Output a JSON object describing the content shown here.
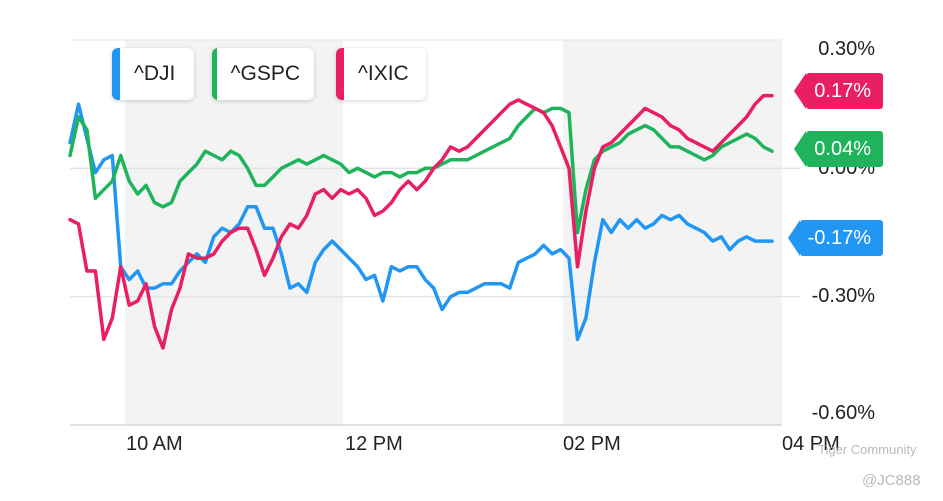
{
  "chart_data": {
    "type": "line",
    "x_ticks": [
      "10 AM",
      "12 PM",
      "02 PM",
      "04 PM"
    ],
    "y_ticks": [
      "0.30%",
      "0.00%",
      "-0.30%",
      "-0.60%"
    ],
    "ylim": [
      -0.6,
      0.3
    ],
    "series": [
      {
        "name": "^DJI",
        "color": "#2196f3",
        "last_label": "-0.17%",
        "values": [
          0.06,
          0.15,
          0.07,
          -0.01,
          0.02,
          0.03,
          -0.23,
          -0.26,
          -0.24,
          -0.28,
          -0.28,
          -0.27,
          -0.27,
          -0.24,
          -0.22,
          -0.2,
          -0.22,
          -0.16,
          -0.14,
          -0.15,
          -0.13,
          -0.09,
          -0.09,
          -0.14,
          -0.14,
          -0.2,
          -0.28,
          -0.27,
          -0.29,
          -0.22,
          -0.19,
          -0.17,
          -0.19,
          -0.21,
          -0.23,
          -0.26,
          -0.25,
          -0.31,
          -0.23,
          -0.24,
          -0.23,
          -0.23,
          -0.26,
          -0.28,
          -0.33,
          -0.3,
          -0.29,
          -0.29,
          -0.28,
          -0.27,
          -0.27,
          -0.27,
          -0.28,
          -0.22,
          -0.21,
          -0.2,
          -0.18,
          -0.2,
          -0.19,
          -0.21,
          -0.4,
          -0.35,
          -0.22,
          -0.12,
          -0.15,
          -0.12,
          -0.14,
          -0.12,
          -0.14,
          -0.13,
          -0.11,
          -0.12,
          -0.11,
          -0.13,
          -0.14,
          -0.15,
          -0.17,
          -0.16,
          -0.19,
          -0.17,
          -0.16,
          -0.17,
          -0.17,
          -0.17
        ]
      },
      {
        "name": "^GSPC",
        "color": "#1fb35c",
        "last_label": "0.04%",
        "values": [
          0.03,
          0.12,
          0.09,
          -0.07,
          -0.05,
          -0.03,
          0.03,
          -0.03,
          -0.06,
          -0.04,
          -0.08,
          -0.09,
          -0.08,
          -0.03,
          -0.01,
          0.01,
          0.04,
          0.03,
          0.02,
          0.04,
          0.03,
          0.0,
          -0.04,
          -0.04,
          -0.02,
          0.0,
          0.01,
          0.02,
          0.01,
          0.02,
          0.03,
          0.02,
          0.01,
          -0.01,
          0.0,
          -0.01,
          -0.02,
          -0.01,
          -0.01,
          -0.02,
          -0.01,
          -0.01,
          0.0,
          0.0,
          0.01,
          0.02,
          0.02,
          0.02,
          0.03,
          0.04,
          0.05,
          0.06,
          0.07,
          0.1,
          0.12,
          0.14,
          0.13,
          0.14,
          0.14,
          0.13,
          -0.15,
          -0.05,
          0.02,
          0.04,
          0.05,
          0.06,
          0.08,
          0.09,
          0.1,
          0.09,
          0.07,
          0.05,
          0.05,
          0.04,
          0.03,
          0.02,
          0.03,
          0.05,
          0.06,
          0.07,
          0.08,
          0.07,
          0.05,
          0.04
        ]
      },
      {
        "name": "^IXIC",
        "color": "#e91e63",
        "last_label": "0.17%",
        "values": [
          -0.12,
          -0.13,
          -0.24,
          -0.24,
          -0.4,
          -0.35,
          -0.23,
          -0.32,
          -0.31,
          -0.27,
          -0.37,
          -0.42,
          -0.33,
          -0.28,
          -0.2,
          -0.21,
          -0.21,
          -0.2,
          -0.17,
          -0.15,
          -0.14,
          -0.14,
          -0.19,
          -0.25,
          -0.21,
          -0.16,
          -0.13,
          -0.14,
          -0.11,
          -0.06,
          -0.05,
          -0.07,
          -0.05,
          -0.06,
          -0.05,
          -0.07,
          -0.11,
          -0.1,
          -0.08,
          -0.05,
          -0.03,
          -0.05,
          -0.03,
          0.0,
          0.02,
          0.05,
          0.04,
          0.05,
          0.07,
          0.09,
          0.11,
          0.13,
          0.15,
          0.16,
          0.15,
          0.14,
          0.13,
          0.1,
          0.05,
          0.0,
          -0.23,
          -0.1,
          0.0,
          0.05,
          0.06,
          0.08,
          0.1,
          0.12,
          0.14,
          0.13,
          0.12,
          0.1,
          0.09,
          0.07,
          0.06,
          0.05,
          0.04,
          0.06,
          0.08,
          0.1,
          0.12,
          0.15,
          0.17,
          0.17
        ]
      }
    ],
    "grid": true,
    "legend_position": "top-left"
  },
  "watermark": {
    "community": "Tiger Community",
    "user": "@JC888"
  }
}
